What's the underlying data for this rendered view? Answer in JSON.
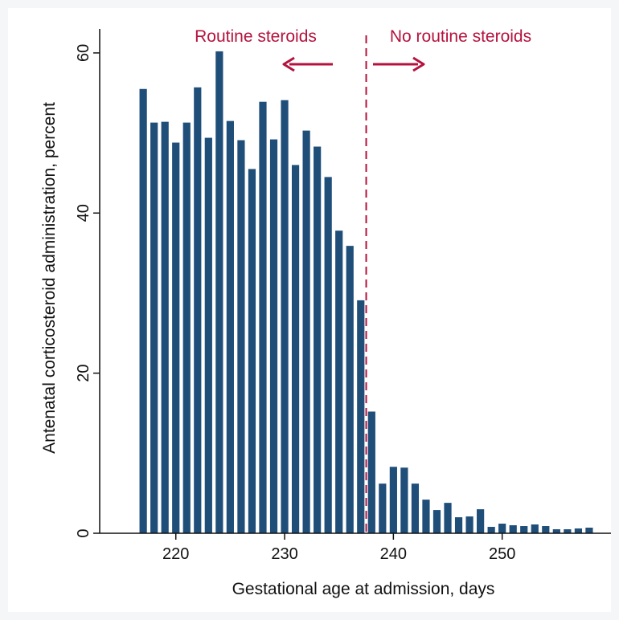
{
  "chart_data": {
    "type": "bar",
    "title": "",
    "xlabel": "Gestational age at admission, days",
    "ylabel": "Antenatal corticosteroid administration, percent",
    "xlim": [
      213,
      260
    ],
    "ylim": [
      0,
      63
    ],
    "xticks": [
      220,
      230,
      240,
      250
    ],
    "yticks": [
      0,
      20,
      40,
      60
    ],
    "grid": false,
    "x": [
      217,
      218,
      219,
      220,
      221,
      222,
      223,
      224,
      225,
      226,
      227,
      228,
      229,
      230,
      231,
      232,
      233,
      234,
      235,
      236,
      237,
      238,
      239,
      240,
      241,
      242,
      243,
      244,
      245,
      246,
      247,
      248,
      249,
      250,
      251,
      252,
      253,
      254,
      255,
      256,
      257,
      258
    ],
    "values": [
      55.5,
      51.3,
      51.4,
      48.8,
      51.3,
      55.7,
      49.4,
      60.2,
      51.5,
      49.1,
      45.5,
      53.9,
      49.2,
      54.1,
      46.0,
      50.3,
      48.3,
      44.5,
      37.8,
      35.9,
      29.1,
      15.2,
      6.2,
      8.3,
      8.2,
      6.2,
      4.2,
      2.9,
      3.8,
      2.0,
      2.1,
      3.0,
      0.8,
      1.2,
      1.0,
      0.9,
      1.1,
      0.9,
      0.5,
      0.5,
      0.6,
      0.7
    ],
    "cutoff": 237.5,
    "annotations": {
      "left": "Routine steroids",
      "right": "No routine steroids"
    },
    "colors": {
      "bar": "#1f4e79",
      "accent": "#b5123e"
    }
  }
}
